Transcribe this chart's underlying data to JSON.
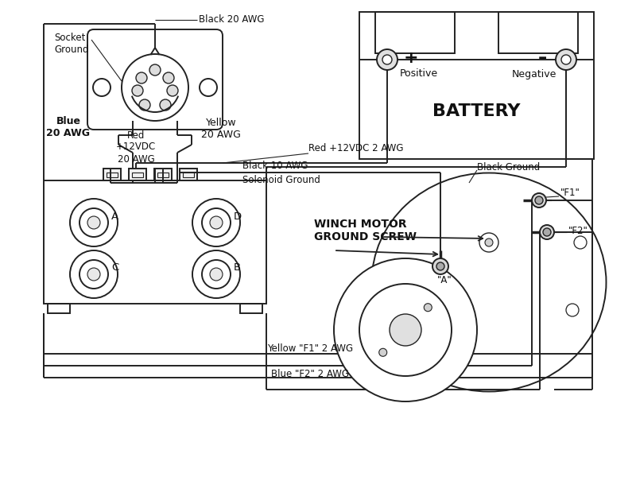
{
  "bg": "#ffffff",
  "lc": "#222222",
  "tc": "#111111",
  "labels": {
    "black_20awg": "Black 20 AWG",
    "socket_ground": "Socket\nGround",
    "blue_20awg": "Blue\n20 AWG",
    "yellow_20awg": "Yellow\n20 AWG",
    "red_12vdc_20awg": "Red\n+12VDC\n20 AWG",
    "black_10awg": "Black 10 AWG",
    "solenoid_ground": "Solenoid Ground",
    "red_12vdc_2awg": "Red +12VDC 2 AWG",
    "positive": "Positive",
    "negative": "Negative",
    "battery": "BATTERY",
    "black_ground": "Black Ground",
    "winch_motor_ground": "WINCH MOTOR\nGROUND SCREW",
    "f1": "\"F1\"",
    "f2": "\"F2\"",
    "a_term": "\"A\"",
    "term_a": "A",
    "term_b": "B",
    "term_c": "C",
    "term_d": "D",
    "yellow_f1_2awg": "Yellow \"F1\" 2 AWG",
    "blue_f2_2awg": "Blue \"F2\" 2 AWG",
    "plus": "+",
    "minus": "–"
  }
}
